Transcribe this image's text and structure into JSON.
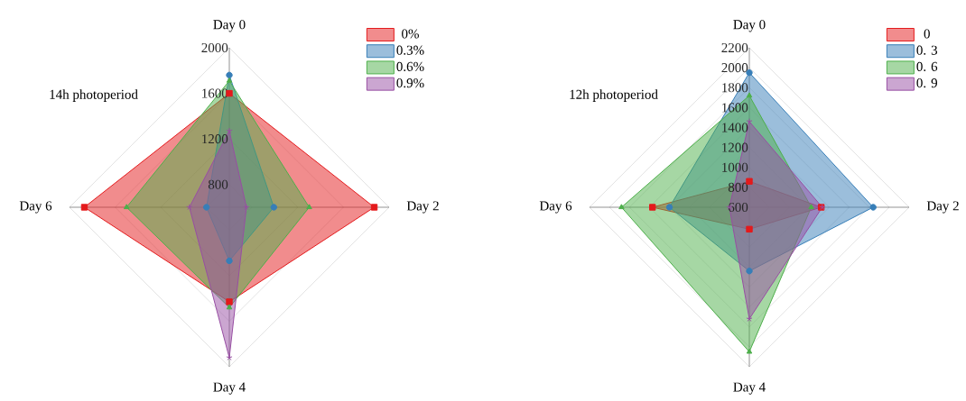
{
  "chart_data": [
    {
      "type": "radar",
      "categories": [
        "Day 0",
        "Day 2",
        "Day 4",
        "Day 6"
      ],
      "ylim": [
        600,
        2000
      ],
      "yticks": [
        800,
        1200,
        1600,
        2000
      ],
      "grid": true,
      "legend": "top right",
      "annotations": [
        "14h photoperiod"
      ],
      "series": [
        {
          "name": "0%",
          "color": "#e41a1c",
          "marker": "square",
          "values": [
            1600,
            1870,
            1430,
            1870
          ]
        },
        {
          "name": "0.3%",
          "color": "#377eb8",
          "marker": "circle",
          "values": [
            1760,
            990,
            1070,
            800
          ]
        },
        {
          "name": "0.6%",
          "color": "#4daf4a",
          "marker": "triangle",
          "values": [
            1710,
            1300,
            1480,
            1500
          ]
        },
        {
          "name": "0.9%",
          "color": "#984ea3",
          "marker": "star",
          "values": [
            1270,
            750,
            1920,
            950
          ]
        }
      ]
    },
    {
      "type": "radar",
      "categories": [
        "Day 0",
        "Day 2",
        "Day 4",
        "Day 6"
      ],
      "ylim": [
        600,
        2200
      ],
      "yticks": [
        600,
        800,
        1000,
        1200,
        1400,
        1600,
        1800,
        2000,
        2200
      ],
      "grid": true,
      "legend": "top right",
      "annotations": [
        "12h photoperiod"
      ],
      "series": [
        {
          "name": "0",
          "color": "#e41a1c",
          "marker": "square",
          "values": [
            860,
            1320,
            820,
            1570
          ]
        },
        {
          "name": "0. 3",
          "color": "#377eb8",
          "marker": "circle",
          "values": [
            1950,
            1840,
            1240,
            1400
          ]
        },
        {
          "name": "0. 6",
          "color": "#4daf4a",
          "marker": "triangle",
          "values": [
            1720,
            1220,
            2050,
            1880
          ]
        },
        {
          "name": "0. 9",
          "color": "#984ea3",
          "marker": "star",
          "values": [
            1460,
            1330,
            1720,
            800
          ]
        }
      ]
    }
  ]
}
